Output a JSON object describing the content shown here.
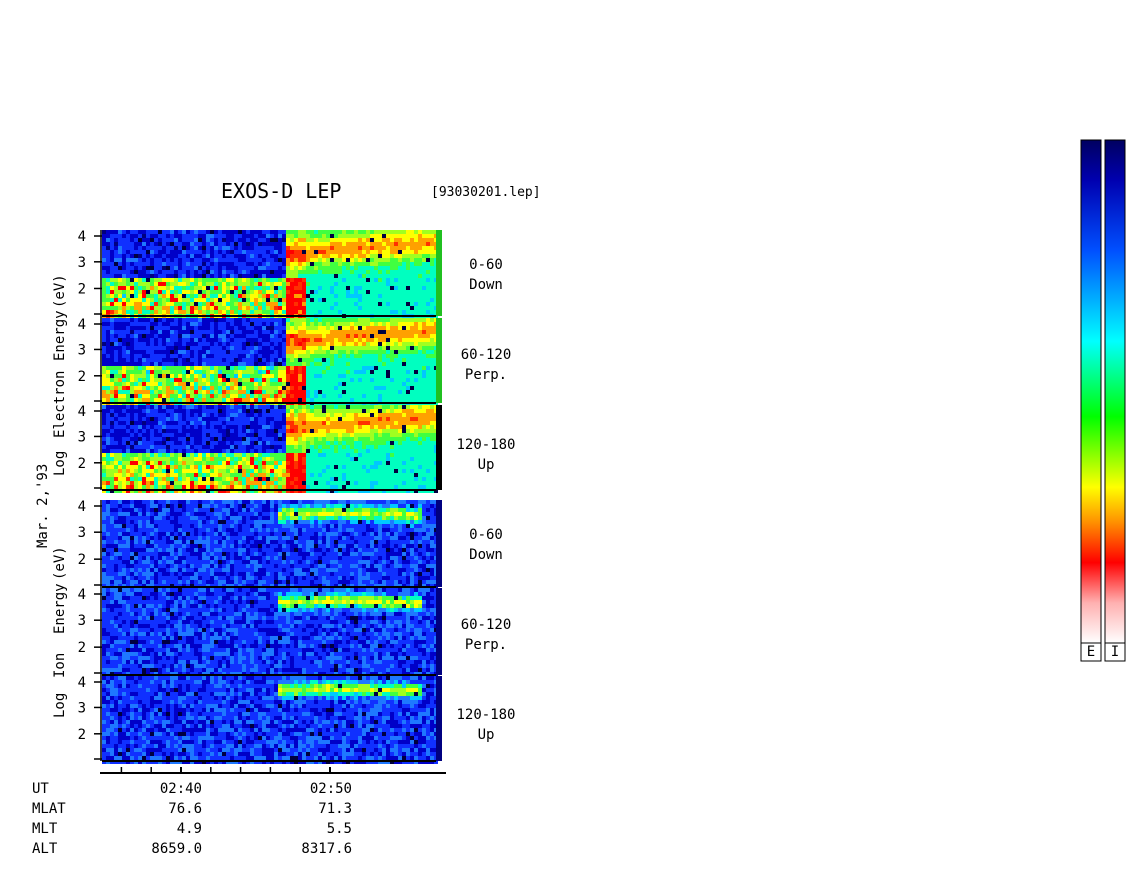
{
  "header": {
    "title": "EXOS-D LEP",
    "file": "[93030201.lep]"
  },
  "date_label": "Mar. 2,'93",
  "electron_group": {
    "ylabel_words": [
      "Log",
      "Electron",
      "Energy",
      "(eV)"
    ],
    "panels": [
      {
        "angle": "0-60",
        "dir": "Down"
      },
      {
        "angle": "60-120",
        "dir": "Perp."
      },
      {
        "angle": "120-180",
        "dir": "Up"
      }
    ]
  },
  "ion_group": {
    "ylabel_words": [
      "Log",
      "Ion",
      "Energy",
      "(eV)"
    ],
    "panels": [
      {
        "angle": "0-60",
        "dir": "Down"
      },
      {
        "angle": "60-120",
        "dir": "Perp."
      },
      {
        "angle": "120-180",
        "dir": "Up"
      }
    ]
  },
  "orbit_table": {
    "rows": [
      {
        "label": "UT",
        "values": [
          "02:40",
          "02:50"
        ]
      },
      {
        "label": "MLAT",
        "values": [
          "76.6",
          "71.3"
        ]
      },
      {
        "label": "MLT",
        "values": [
          "4.9",
          "5.5"
        ]
      },
      {
        "label": "ALT",
        "values": [
          "8659.0",
          "8317.6"
        ]
      }
    ]
  },
  "colorbars": [
    {
      "label": "E"
    },
    {
      "label": "I"
    }
  ],
  "colors": {
    "spectrogram_background": "#1428c8",
    "colorbar_stops": [
      "#ffffff",
      "#ff0000",
      "#ffa000",
      "#ffff00",
      "#00ff00",
      "#00ffff",
      "#0050ff",
      "#0000b0",
      "#000060"
    ]
  },
  "chart_data": {
    "type": "heatmap",
    "title": "EXOS-D LEP",
    "x": {
      "ticks": [
        "02:40",
        "02:50"
      ],
      "minor_tick_interval_min": 2
    },
    "y": {
      "ticks": [
        1,
        2,
        3,
        4
      ],
      "tick_labels": [
        "2",
        "3",
        "4"
      ],
      "range": [
        1,
        4.1
      ],
      "unit": "eV",
      "scale": "log10"
    },
    "panels": [
      "electron 0-60 Down",
      "electron 60-120 Perp.",
      "electron 120-180 Up",
      "ion 0-60 Down",
      "ion 60-120 Perp.",
      "ion 120-180 Up"
    ]
  }
}
